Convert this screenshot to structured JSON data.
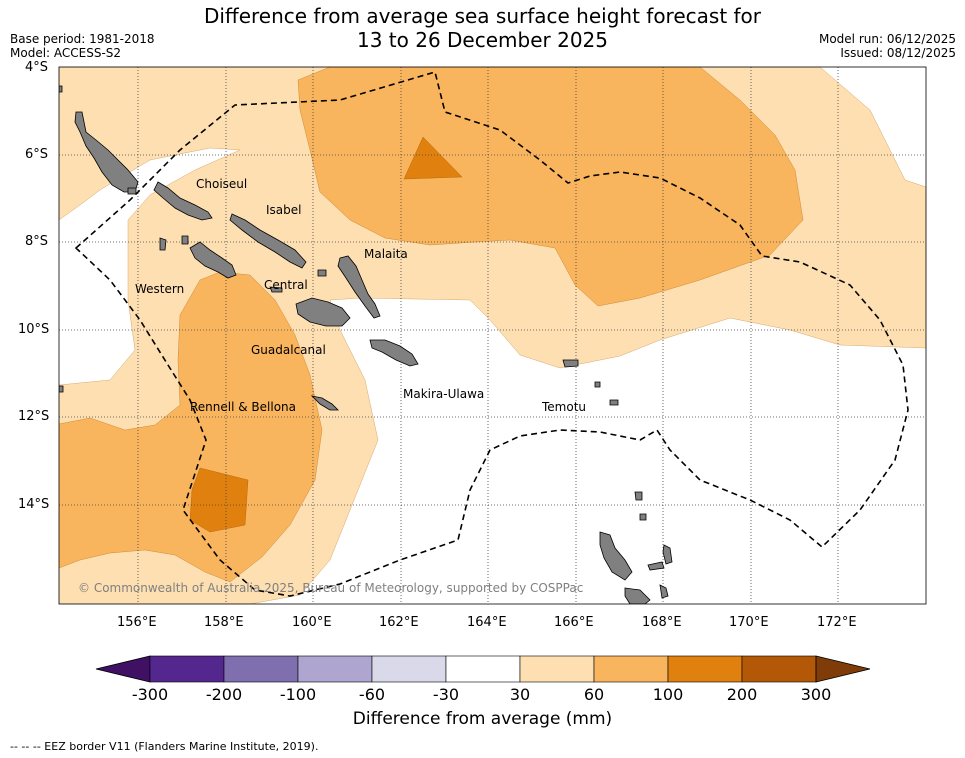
{
  "title": {
    "line1": "Difference from average sea surface height forecast for",
    "line2": "13 to 26 December 2025"
  },
  "meta": {
    "base_period": "Base period: 1981-2018",
    "model": "Model: ACCESS-S2",
    "model_run": "Model run: 06/12/2025",
    "issued": "Issued: 08/12/2025"
  },
  "axes": {
    "lat_ticks": [
      "4°S",
      "6°S",
      "8°S",
      "10°S",
      "12°S",
      "14°S"
    ],
    "lon_ticks": [
      "156°E",
      "158°E",
      "160°E",
      "162°E",
      "164°E",
      "166°E",
      "168°E",
      "170°E",
      "172°E"
    ]
  },
  "places": [
    "Choiseul",
    "Isabel",
    "Malaita",
    "Western",
    "Central",
    "Guadalcanal",
    "Makira-Ulawa",
    "Rennell & Bellona",
    "Temotu"
  ],
  "copyright": "© Commonwealth of Australia 2025, Bureau of Meteorology, supported by COSPPac",
  "colorbar": {
    "title": "Difference from average (mm)",
    "labels": [
      "-300",
      "-200",
      "-100",
      "-60",
      "-30",
      "30",
      "60",
      "100",
      "200",
      "300"
    ],
    "colors": [
      "#3f1063",
      "#54278f",
      "#7f6faf",
      "#aea6d0",
      "#d9d9ea",
      "#ffffff",
      "#fddfb2",
      "#f9b45e",
      "#e0810f",
      "#b35806",
      "#7f3b08"
    ]
  },
  "footnote": "-- -- -- EEZ border V11 (Flanders Marine Institute, 2019).",
  "colors": {
    "land": "#808080",
    "band_30_60": "#fddfb2",
    "band_60_100": "#f9b45e",
    "band_100_200": "#e0810f"
  }
}
